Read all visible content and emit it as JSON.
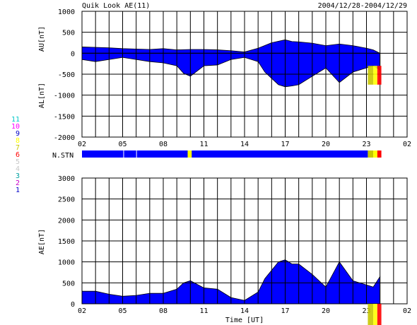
{
  "header": {
    "title": "Quik Look AE(11)",
    "date_range": "2004/12/28-2004/12/29"
  },
  "colors": {
    "fill": "#0000ff",
    "grid": "#000000",
    "stn_11": "#00c8c8",
    "stn_10": "#ff00ff",
    "stn_9": "#0000c8",
    "stn_8": "#ffff00",
    "stn_7": "#c8c800",
    "stn_6": "#ff0000",
    "stn_5": "#c8c8c8",
    "stn_4": "#c8c8c8",
    "stn_3": "#00a0a0",
    "stn_2": "#c800c8",
    "stn_1": "#0000c8"
  },
  "station_legend": [
    "11",
    "10",
    "9",
    "8",
    "7",
    "6",
    "5",
    "4",
    "3",
    "2",
    "1"
  ],
  "nstn_label": "N.STN",
  "chart_data": [
    {
      "type": "area",
      "panel": "AU/AL",
      "ylabel_top": "AU[nT]",
      "ylabel_bottom": "AL[nT]",
      "ylim": [
        -2000,
        1000
      ],
      "yticks": [
        "1000",
        "500",
        "0",
        "-500",
        "-1000",
        "-1500",
        "-2000"
      ],
      "xticks": [
        "02",
        "05",
        "08",
        "11",
        "14",
        "17",
        "20",
        "23",
        "02"
      ],
      "grid": true,
      "series": [
        {
          "name": "AU",
          "x": [
            2,
            3,
            4,
            5,
            6,
            7,
            8,
            9,
            10,
            11,
            12,
            13,
            14,
            15,
            16,
            17,
            17.5,
            18,
            19,
            20,
            21,
            22,
            23,
            23.5,
            24
          ],
          "values": [
            150,
            140,
            130,
            110,
            100,
            90,
            110,
            80,
            90,
            90,
            80,
            60,
            30,
            120,
            250,
            320,
            280,
            270,
            240,
            180,
            220,
            180,
            120,
            80,
            0
          ]
        },
        {
          "name": "AL",
          "x": [
            2,
            3,
            4,
            5,
            6,
            7,
            8,
            9,
            9.5,
            10,
            11,
            12,
            13,
            14,
            15,
            15.5,
            16,
            16.5,
            17,
            17.5,
            18,
            19,
            20,
            21,
            22,
            23,
            23.5,
            24
          ],
          "values": [
            -150,
            -200,
            -150,
            -100,
            -150,
            -200,
            -230,
            -300,
            -480,
            -550,
            -300,
            -280,
            -150,
            -100,
            -200,
            -450,
            -600,
            -750,
            -800,
            -780,
            -750,
            -550,
            -350,
            -700,
            -450,
            -350,
            -300,
            -400
          ]
        }
      ]
    },
    {
      "type": "area",
      "panel": "AE",
      "ylabel": "AE[nT]",
      "xlabel": "Time [UT]",
      "ylim": [
        0,
        3000
      ],
      "yticks": [
        "3000",
        "2500",
        "2000",
        "1500",
        "1000",
        "500",
        "0"
      ],
      "xticks": [
        "02",
        "05",
        "08",
        "11",
        "14",
        "17",
        "20",
        "23",
        "02"
      ],
      "grid": true,
      "series": [
        {
          "name": "AE",
          "x": [
            2,
            3,
            4,
            5,
            6,
            7,
            8,
            9,
            9.5,
            10,
            11,
            12,
            13,
            14,
            15,
            15.5,
            16,
            16.5,
            17,
            17.5,
            18,
            19,
            20,
            21,
            22,
            23,
            23.5,
            24
          ],
          "values": [
            300,
            300,
            230,
            180,
            200,
            250,
            250,
            350,
            500,
            550,
            380,
            350,
            150,
            80,
            280,
            600,
            800,
            1000,
            1050,
            950,
            950,
            700,
            400,
            1000,
            550,
            450,
            400,
            650
          ]
        }
      ]
    }
  ]
}
